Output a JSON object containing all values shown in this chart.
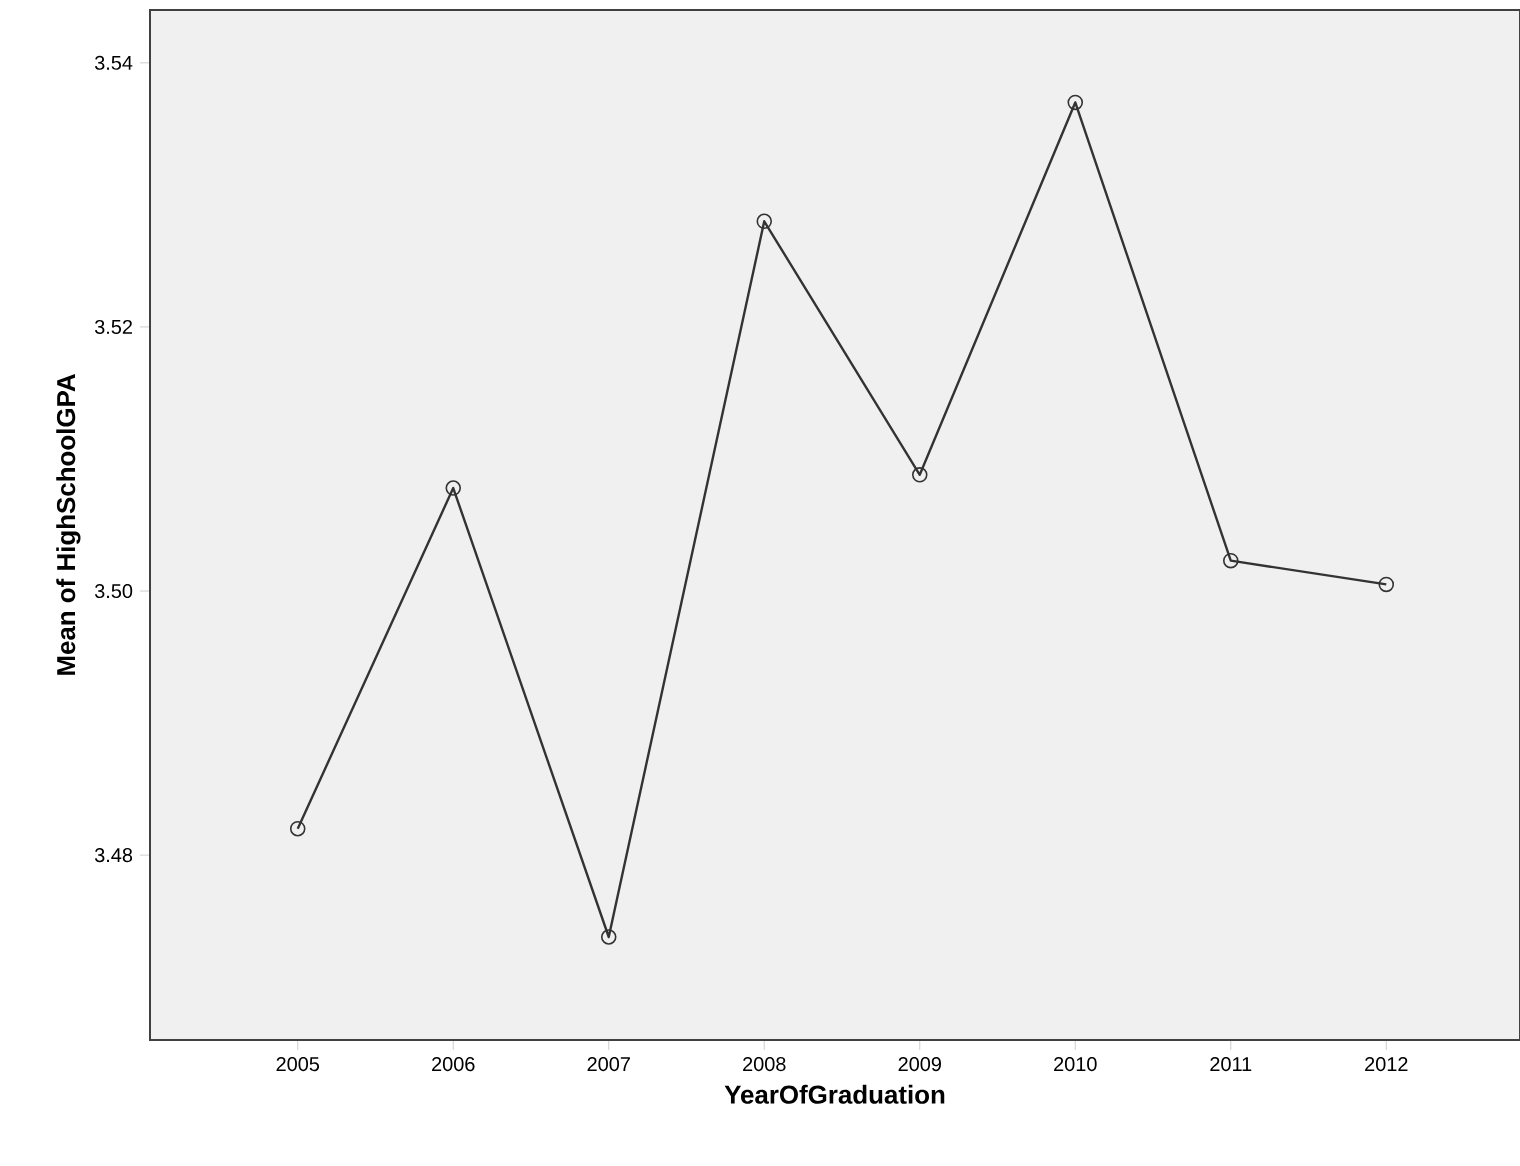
{
  "chart_data": {
    "type": "line",
    "xlabel": "YearOfGraduation",
    "ylabel": "Mean of HighSchoolGPA",
    "categories": [
      "2005",
      "2006",
      "2007",
      "2008",
      "2009",
      "2010",
      "2011",
      "2012"
    ],
    "values": [
      3.482,
      3.5078,
      3.4738,
      3.528,
      3.5088,
      3.537,
      3.5023,
      3.5005
    ],
    "color": "#333333",
    "marker": "circle",
    "line_style": "solid",
    "ylim": [
      3.466,
      3.544
    ],
    "yticks": [
      {
        "value": 3.48,
        "label": "3.48"
      },
      {
        "value": 3.5,
        "label": "3.50"
      },
      {
        "value": 3.52,
        "label": "3.52"
      },
      {
        "value": 3.54,
        "label": "3.54"
      }
    ],
    "grid": false
  }
}
